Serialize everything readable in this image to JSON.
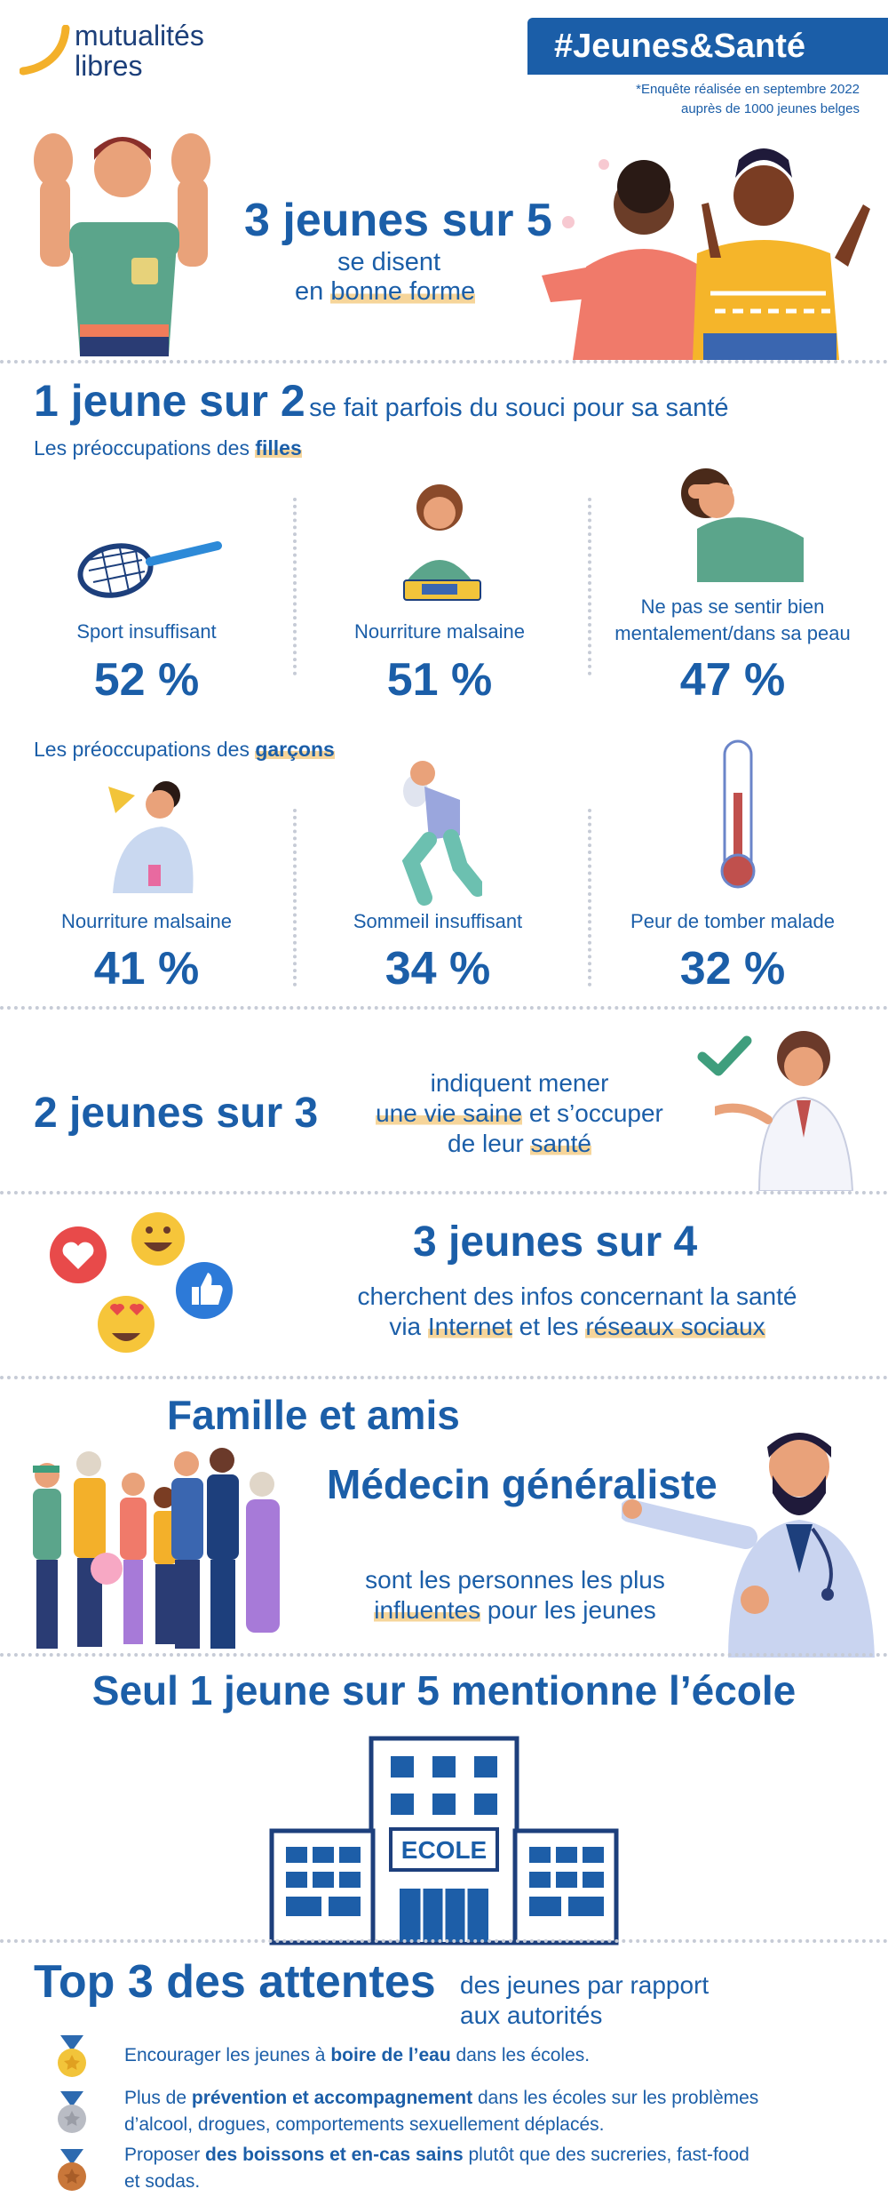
{
  "header": {
    "logo_line1": "mutualités",
    "logo_line2": "libres",
    "hashtag": "#Jeunes&Santé",
    "survey_line1": "*Enquête réalisée en septembre 2022",
    "survey_line2": "auprès de 1000 jeunes belges"
  },
  "s1": {
    "big": "3 jeunes sur 5",
    "line1": "se disent",
    "line2_pre": "en ",
    "line2_hl": "bonne forme"
  },
  "s2": {
    "big": "1 jeune sur 2",
    "rest": "se fait parfois du souci pour sa santé",
    "girls_pre": "Les préoccupations des ",
    "girls_hl": "filles",
    "girls": [
      {
        "label": "Sport insuffisant",
        "pct": "52 %"
      },
      {
        "label": "Nourriture malsaine",
        "pct": "51 %"
      },
      {
        "label1": "Ne pas se sentir bien",
        "label2": "mentalement/dans sa peau",
        "pct": "47 %"
      }
    ],
    "boys_pre": "Les préoccupations des ",
    "boys_hl": "garçons",
    "boys": [
      {
        "label": "Nourriture malsaine",
        "pct": "41 %"
      },
      {
        "label": "Sommeil insuffisant",
        "pct": "34 %"
      },
      {
        "label": "Peur de tomber malade",
        "pct": "32 %"
      }
    ]
  },
  "s3": {
    "big": "2 jeunes sur 3",
    "line1": "indiquent mener",
    "line2_hl": "une vie saine",
    "line2_rest": " et s’occuper",
    "line3_pre": "de leur ",
    "line3_hl": "santé"
  },
  "s4": {
    "big": "3 jeunes sur 4",
    "line1": "cherchent des infos concernant la santé",
    "line2_pre": "via ",
    "line2_hl1": "Internet",
    "line2_mid": " et les ",
    "line2_hl2": "réseaux sociaux"
  },
  "s5": {
    "title1": "Famille et amis",
    "title2": "Médecin généraliste",
    "line1": "sont les personnes les plus",
    "line2_hl": "influentes",
    "line2_rest": " pour les jeunes"
  },
  "s6": {
    "title": "Seul 1 jeune sur 5 mentionne l’école",
    "school_sign": "ECOLE"
  },
  "s7": {
    "big": "Top 3 des attentes",
    "sub1": "des jeunes par rapport",
    "sub2": "aux autorités",
    "items": [
      {
        "pre": "Encourager les jeunes à ",
        "bold": "boire de l’eau",
        "post": " dans les écoles.",
        "line2": ""
      },
      {
        "pre": "Plus de ",
        "bold": "prévention et accompagnement",
        "post": " dans les écoles sur les problèmes",
        "line2": "d’alcool, drogues, comportements sexuellement déplacés."
      },
      {
        "pre": "Proposer ",
        "bold": "des boissons et en-cas sains",
        "post": " plutôt que des sucreries, fast-food",
        "line2": "et sodas."
      }
    ]
  },
  "colors": {
    "brand_blue": "#1b5ea8",
    "highlight": "#f6d59a",
    "logo_swoosh": "#f3b02a"
  }
}
